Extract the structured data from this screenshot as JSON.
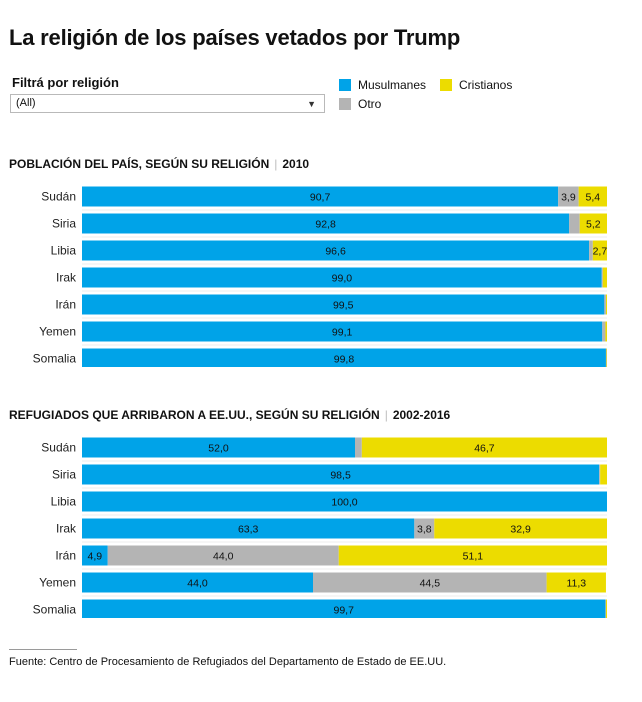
{
  "title": "La religión de los países vetados por Trump",
  "filter": {
    "label": "Filtrá por religión",
    "selected": "(All)"
  },
  "legend": {
    "items": [
      {
        "label": "Musulmanes",
        "color": "#00a3e8"
      },
      {
        "label": "Cristianos",
        "color": "#ecdc00"
      },
      {
        "label": "Otro",
        "color": "#b4b4b4"
      }
    ]
  },
  "sections": [
    {
      "title": "POBLACIÓN DEL PAÍS, SEGÚN SU RELIGIÓN",
      "year": "2010"
    },
    {
      "title": "REFUGIADOS QUE ARRIBARON A EE.UU., SEGÚN SU RELIGIÓN",
      "year": "2002-2016"
    }
  ],
  "chart_data": [
    {
      "type": "bar",
      "orientation": "horizontal",
      "stacked": true,
      "title": "POBLACIÓN DEL PAÍS, SEGÚN SU RELIGIÓN | 2010",
      "categories": [
        "Sudán",
        "Siria",
        "Libia",
        "Irak",
        "Irán",
        "Yemen",
        "Somalia"
      ],
      "series": [
        {
          "name": "Musulmanes",
          "color": "#00a3e8",
          "values": [
            90.7,
            92.8,
            96.6,
            99.0,
            99.5,
            99.1,
            99.8
          ],
          "labels": [
            "90,7",
            "92,8",
            "96,6",
            "99,0",
            "99,5",
            "99,1",
            "99,8"
          ]
        },
        {
          "name": "Otro",
          "color": "#b4b4b4",
          "values": [
            3.9,
            2.0,
            0.7,
            0.2,
            0.3,
            0.6,
            0.1
          ],
          "labels": [
            "3,9",
            "",
            "",
            "",
            "",
            "",
            ""
          ]
        },
        {
          "name": "Cristianos",
          "color": "#ecdc00",
          "values": [
            5.4,
            5.2,
            2.7,
            0.8,
            0.2,
            0.3,
            0.1
          ],
          "labels": [
            "5,4",
            "5,2",
            "2,7",
            "",
            "",
            "",
            ""
          ]
        }
      ],
      "xlim": [
        0,
        100
      ]
    },
    {
      "type": "bar",
      "orientation": "horizontal",
      "stacked": true,
      "title": "REFUGIADOS QUE ARRIBARON A EE.UU., SEGÚN SU RELIGIÓN | 2002-2016",
      "categories": [
        "Sudán",
        "Siria",
        "Libia",
        "Irak",
        "Irán",
        "Yemen",
        "Somalia"
      ],
      "series": [
        {
          "name": "Musulmanes",
          "color": "#00a3e8",
          "values": [
            52.0,
            98.5,
            100.0,
            63.3,
            4.9,
            44.0,
            99.7
          ],
          "labels": [
            "52,0",
            "98,5",
            "100,0",
            "63,3",
            "4,9",
            "44,0",
            "99,7"
          ]
        },
        {
          "name": "Otro",
          "color": "#b4b4b4",
          "values": [
            1.3,
            0.2,
            0.0,
            3.8,
            44.0,
            44.5,
            0.1
          ],
          "labels": [
            "",
            "",
            "",
            "3,8",
            "44,0",
            "44,5",
            ""
          ]
        },
        {
          "name": "Cristianos",
          "color": "#ecdc00",
          "values": [
            46.7,
            1.3,
            0.0,
            32.9,
            51.1,
            11.3,
            0.2
          ],
          "labels": [
            "46,7",
            "",
            "",
            "32,9",
            "51,1",
            "11,3",
            ""
          ]
        }
      ],
      "xlim": [
        0,
        100
      ]
    }
  ],
  "footnote": "Fuente: Centro de Procesamiento de Refugiados del Departamento de Estado de EE.UU."
}
